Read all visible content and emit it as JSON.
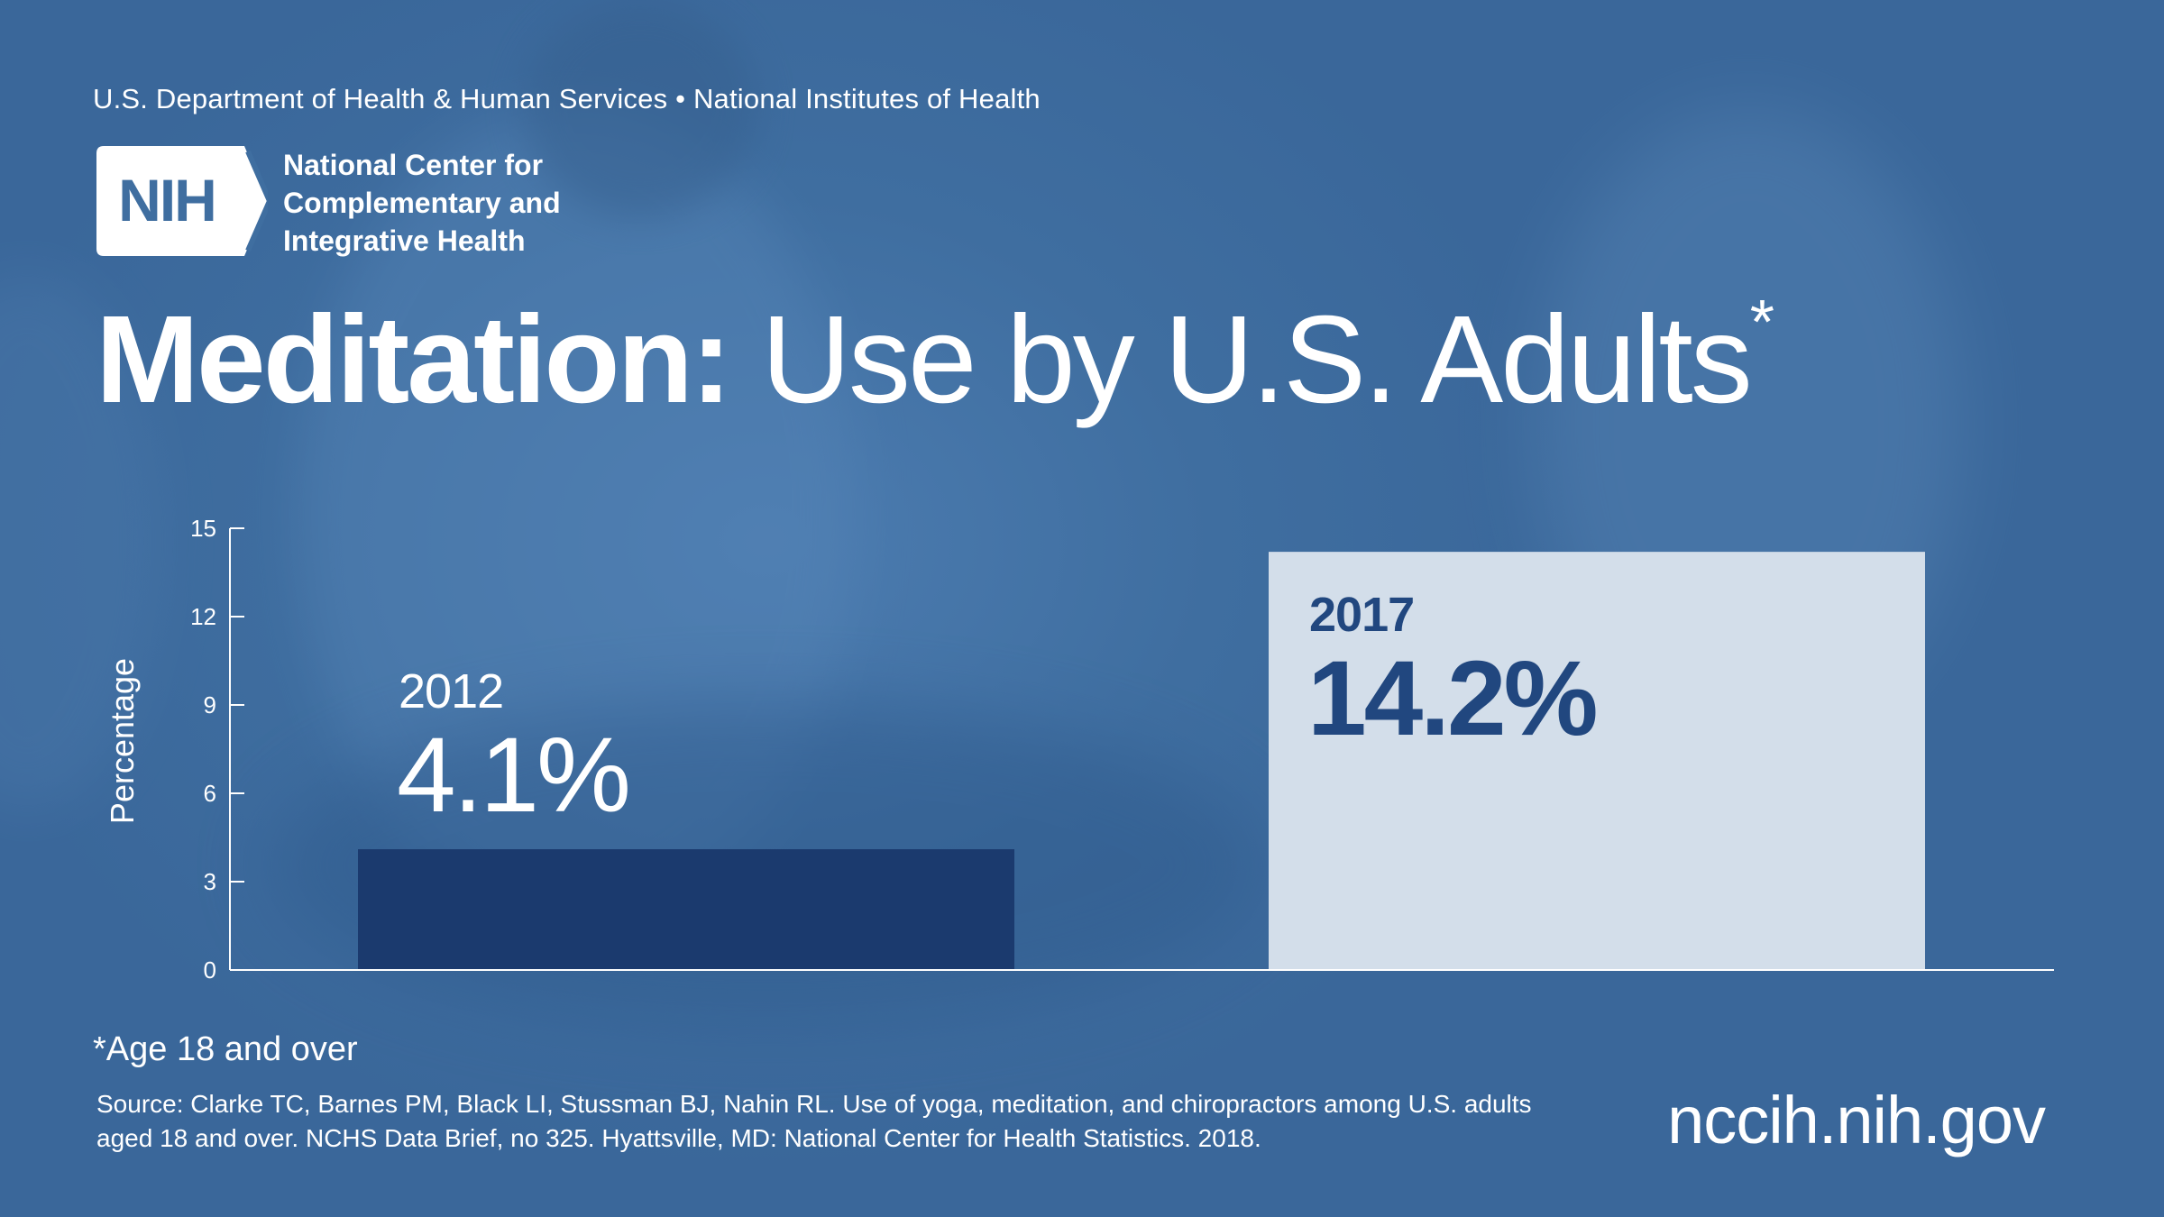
{
  "header": {
    "agency_line": "U.S. Department of Health & Human Services • National Institutes of Health",
    "logo_text": "NIH",
    "org_name_lines": [
      "National Center for",
      "Complementary and",
      "Integrative Health"
    ]
  },
  "title": {
    "bold": "Meditation:",
    "light": "Use by U.S. Adults",
    "marker": "*"
  },
  "chart_data": {
    "type": "bar",
    "ylabel": "Percentage",
    "ylim": [
      0,
      15
    ],
    "yticks": [
      0,
      3,
      6,
      9,
      12,
      15
    ],
    "categories": [
      "2012",
      "2017"
    ],
    "values": [
      4.1,
      14.2
    ],
    "value_labels": [
      "4.1%",
      "14.2%"
    ],
    "bar_colors": [
      "#1b3a6e",
      "#d3deea"
    ],
    "label_colors": [
      "#ffffff",
      "#21477f"
    ]
  },
  "footnote": "*Age 18 and over",
  "source": "Source: Clarke TC, Barnes PM, Black LI, Stussman BJ, Nahin RL. Use of yoga, meditation, and chiropractors among U.S. adults aged 18 and over. NCHS Data Brief, no 325. Hyattsville, MD: National Center for Health Statistics. 2018.",
  "website": "nccih.nih.gov",
  "colors": {
    "background": "#3f6ea0",
    "text": "#ffffff",
    "bar_2012": "#1b3a6e",
    "bar_2017": "#d3deea"
  }
}
